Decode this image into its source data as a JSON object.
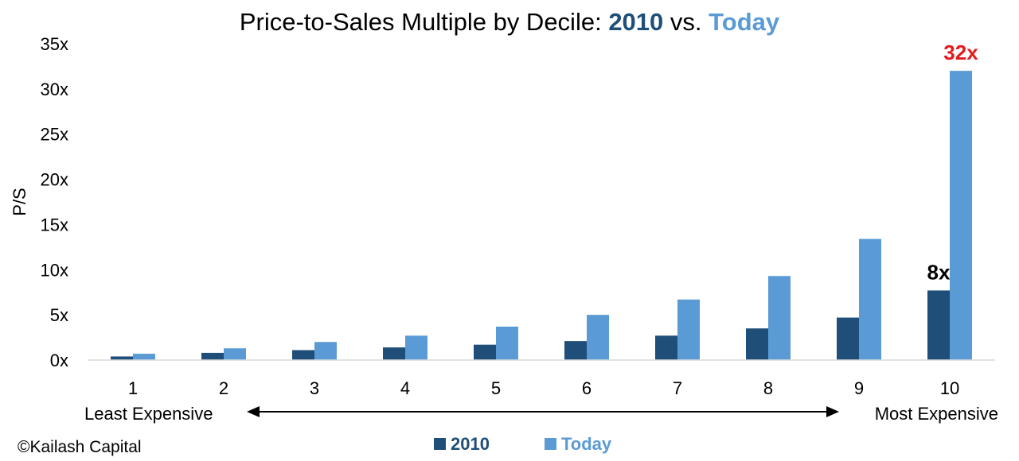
{
  "chart_data": {
    "type": "bar",
    "title": {
      "prefix": "Price-to-Sales Multiple by Decile: ",
      "series1": "2010",
      "middle": " vs. ",
      "series2": "Today"
    },
    "ylabel": "P/S",
    "xlabel": "",
    "ylim": [
      0,
      35
    ],
    "yticks": [
      "0x",
      "5x",
      "10x",
      "15x",
      "20x",
      "25x",
      "30x",
      "35x"
    ],
    "ytick_values": [
      0,
      5,
      10,
      15,
      20,
      25,
      30,
      35
    ],
    "grid": false,
    "legend_position": "bottom",
    "categories": [
      "1",
      "2",
      "3",
      "4",
      "5",
      "6",
      "7",
      "8",
      "9",
      "10"
    ],
    "series": [
      {
        "name": "2010",
        "color": "#1F4E79",
        "values": [
          0.4,
          0.8,
          1.1,
          1.4,
          1.7,
          2.1,
          2.7,
          3.5,
          4.7,
          7.7
        ]
      },
      {
        "name": "Today",
        "color": "#5B9BD5",
        "values": [
          0.7,
          1.3,
          2.0,
          2.7,
          3.7,
          5.0,
          6.7,
          9.3,
          13.4,
          32.0
        ]
      }
    ],
    "annotations": [
      {
        "text": "8x",
        "series": 0,
        "category_index": 9,
        "color": "#000000"
      },
      {
        "text": "32x",
        "series": 1,
        "category_index": 9,
        "color": "#E31A1C"
      }
    ],
    "axis_left_label": "Least Expensive",
    "axis_right_label": "Most Expensive",
    "credit": "©Kailash Capital"
  }
}
